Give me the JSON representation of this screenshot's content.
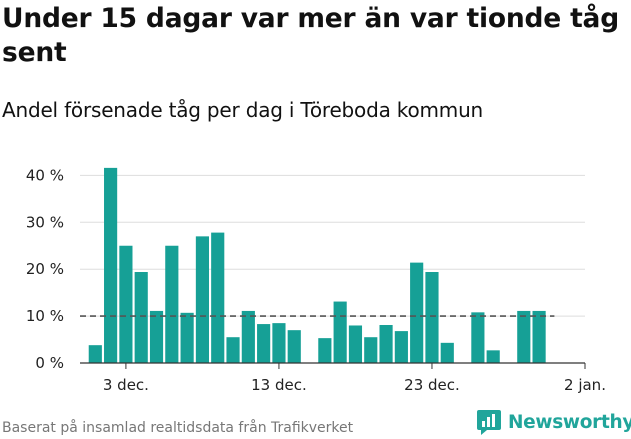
{
  "header": {
    "title": "Under 15 dagar var mer än var tionde tåg sent",
    "subtitle": "Andel försenade tåg per dag i Töreboda kommun"
  },
  "footer": {
    "source": "Baserat på insamlad realtidsdata från Trafikverket",
    "brand": "Newsworthy",
    "brand_icon": "newsworthy-logo-icon"
  },
  "colors": {
    "bar": "#16a096",
    "reference_line": "#555555",
    "grid": "#dddddd",
    "brand": "#21a59b"
  },
  "chart_data": {
    "type": "bar",
    "title": "Andel försenade tåg per dag i Töreboda kommun",
    "xlabel": "",
    "ylabel": "",
    "ylim": [
      0,
      42
    ],
    "yticks": [
      {
        "value": 0,
        "label": "0 %"
      },
      {
        "value": 10,
        "label": "10 %"
      },
      {
        "value": 20,
        "label": "20 %"
      },
      {
        "value": 30,
        "label": "30 %"
      },
      {
        "value": 40,
        "label": "40 %"
      }
    ],
    "xticks": [
      {
        "date": "2020-12-03",
        "label": "3 dec."
      },
      {
        "date": "2020-12-13",
        "label": "13 dec."
      },
      {
        "date": "2020-12-23",
        "label": "23 dec."
      },
      {
        "date": "2021-01-02",
        "label": "2 jan."
      }
    ],
    "xlim": [
      "2020-11-30",
      "2021-01-02"
    ],
    "reference_line": {
      "value": 10,
      "style": "dashed",
      "from": "2020-11-30",
      "to": "2020-12-31"
    },
    "grid": true,
    "legend": "none",
    "x": [
      "2020-12-01",
      "2020-12-02",
      "2020-12-03",
      "2020-12-04",
      "2020-12-05",
      "2020-12-06",
      "2020-12-07",
      "2020-12-08",
      "2020-12-09",
      "2020-12-10",
      "2020-12-11",
      "2020-12-12",
      "2020-12-13",
      "2020-12-14",
      "2020-12-15",
      "2020-12-16",
      "2020-12-17",
      "2020-12-18",
      "2020-12-19",
      "2020-12-20",
      "2020-12-21",
      "2020-12-22",
      "2020-12-23",
      "2020-12-24",
      "2020-12-25",
      "2020-12-26",
      "2020-12-27",
      "2020-12-28",
      "2020-12-29",
      "2020-12-30"
    ],
    "values": [
      3.8,
      41.6,
      25.0,
      19.4,
      11.1,
      25.0,
      10.7,
      27.0,
      27.8,
      5.5,
      11.1,
      8.3,
      8.5,
      7.0,
      null,
      5.3,
      13.1,
      8.0,
      5.5,
      8.1,
      6.8,
      21.4,
      19.4,
      4.3,
      null,
      10.8,
      2.7,
      null,
      11.1,
      11.1
    ]
  }
}
